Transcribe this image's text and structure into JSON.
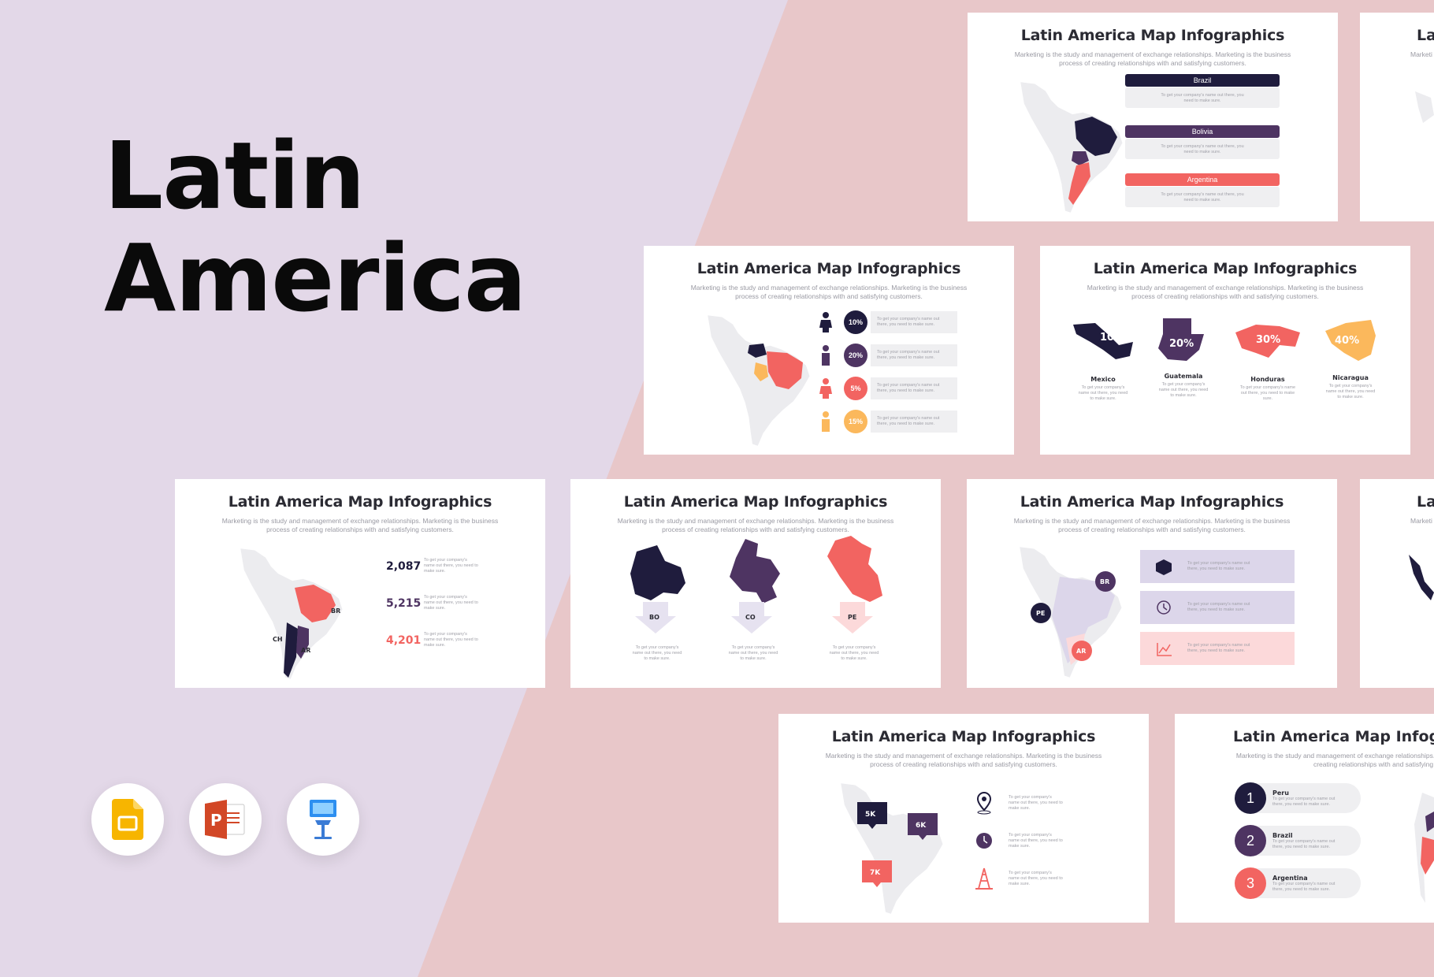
{
  "hero": {
    "line1": "Latin",
    "line2": "America"
  },
  "app_icons": [
    "google-slides-icon",
    "powerpoint-icon",
    "keynote-icon"
  ],
  "colors": {
    "navy": "#1f1c3d",
    "purple": "#4e3462",
    "coral": "#f26461",
    "yellow": "#fbb85c",
    "lavender": "#dcd6ea",
    "pink": "#fcd9da"
  },
  "slide_title": "Latin America Map Infographics",
  "slide_subtitle": "Marketing is the study and management of exchange relationships. Marketing is the business process of creating relationships with and satisfying customers.",
  "placeholder": "To get your company's name out there, you need to make sure.",
  "s1": {
    "items": [
      "Brazil",
      "Bolivia",
      "Argentina"
    ]
  },
  "s2": {
    "percents": [
      "10%",
      "20%",
      "5%",
      "15%"
    ]
  },
  "s3": {
    "countries": [
      {
        "name": "Mexico",
        "pct": "10%"
      },
      {
        "name": "Guatemala",
        "pct": "20%"
      },
      {
        "name": "Honduras",
        "pct": "30%"
      },
      {
        "name": "Nicaragua",
        "pct": "40%"
      }
    ]
  },
  "s4": {
    "stats": [
      "2,087",
      "5,215",
      "4,201"
    ],
    "codes": [
      "BR",
      "CH",
      "AR"
    ]
  },
  "s5": {
    "codes": [
      "BO",
      "CO",
      "PE"
    ]
  },
  "s6": {
    "codes": [
      "BR",
      "PE",
      "AR"
    ]
  },
  "s7": {
    "pins": [
      "5K",
      "6K",
      "7K"
    ]
  },
  "s8": {
    "items": [
      {
        "num": "1",
        "name": "Peru"
      },
      {
        "num": "2",
        "name": "Brazil"
      },
      {
        "num": "3",
        "name": "Argentina"
      }
    ]
  },
  "partial_title": "La",
  "partial_sub": "Marketi"
}
